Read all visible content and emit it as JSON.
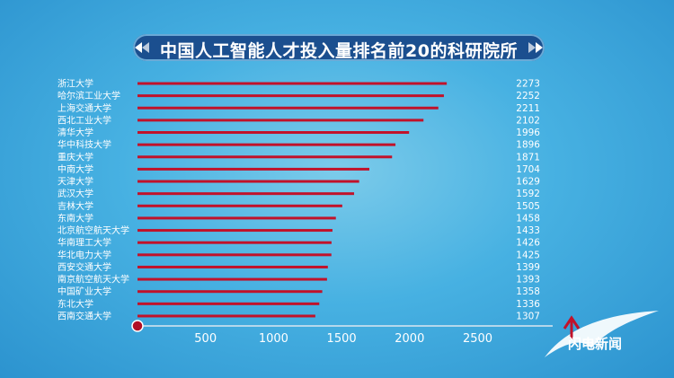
{
  "chart_data": {
    "type": "bar",
    "orientation": "horizontal",
    "title": "中国人工智能人才投入量排名前20的科研院所",
    "categories": [
      "浙江大学",
      "哈尔滨工业大学",
      "上海交通大学",
      "西北工业大学",
      "清华大学",
      "华中科技大学",
      "重庆大学",
      "中南大学",
      "天津大学",
      "武汉大学",
      "吉林大学",
      "东南大学",
      "北京航空航天大学",
      "华南理工大学",
      "华北电力大学",
      "西安交通大学",
      "南京航空航天大学",
      "中国矿业大学",
      "东北大学",
      "西南交通大学"
    ],
    "values": [
      2273,
      2252,
      2211,
      2102,
      1996,
      1896,
      1871,
      1704,
      1629,
      1592,
      1505,
      1458,
      1433,
      1426,
      1425,
      1399,
      1393,
      1358,
      1336,
      1307
    ],
    "value_labels": [
      "2273",
      "2252",
      "2211",
      "2102",
      "1996",
      "1896",
      "1871",
      "1704",
      "1629",
      "1592",
      "1505",
      "1458",
      "1433",
      "1426",
      "1425",
      "1399",
      "1393",
      "1358",
      "1336",
      "1307"
    ],
    "xticks": [
      500,
      1000,
      1500,
      2000,
      2500
    ],
    "xtick_labels": [
      "500",
      "1000",
      "1500",
      "2000",
      "2500"
    ],
    "xlim": [
      0,
      2500
    ],
    "bar_color": "#c1122a",
    "grid": false,
    "legend": "none"
  },
  "logo": {
    "text": "闪电新闻"
  }
}
